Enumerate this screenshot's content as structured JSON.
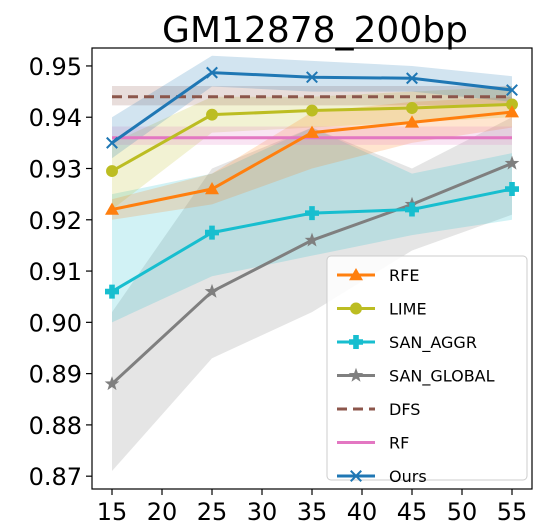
{
  "chart_data": {
    "type": "line",
    "title": "GM12878_200bp",
    "xlabel": "",
    "ylabel": "",
    "x": [
      15,
      25,
      35,
      45,
      55
    ],
    "xticks": [
      15,
      20,
      25,
      30,
      35,
      40,
      45,
      50,
      55
    ],
    "xtick_labels": [
      "15",
      "20",
      "25",
      "30",
      "35",
      "40",
      "45",
      "50",
      "55"
    ],
    "yticks": [
      0.87,
      0.88,
      0.89,
      0.9,
      0.91,
      0.92,
      0.93,
      0.94,
      0.95
    ],
    "ytick_labels": [
      "0.87",
      "0.88",
      "0.89",
      "0.90",
      "0.91",
      "0.92",
      "0.93",
      "0.94",
      "0.95"
    ],
    "xlim": [
      13,
      57
    ],
    "ylim": [
      0.8675,
      0.9535
    ],
    "grid": false,
    "legend_position": "lower-right",
    "series": [
      {
        "name": "RFE",
        "color": "#ff7f0e",
        "marker": "triangle",
        "style": "solid",
        "values": [
          0.922,
          0.926,
          0.937,
          0.939,
          0.941
        ],
        "lower": [
          0.92,
          0.923,
          0.93,
          0.935,
          0.938
        ],
        "upper": [
          0.924,
          0.929,
          0.941,
          0.943,
          0.944
        ]
      },
      {
        "name": "LIME",
        "color": "#bcbd22",
        "marker": "circle",
        "style": "solid",
        "values": [
          0.9295,
          0.9405,
          0.9413,
          0.9418,
          0.9425
        ],
        "lower": [
          0.922,
          0.937,
          0.938,
          0.939,
          0.94
        ],
        "upper": [
          0.935,
          0.944,
          0.944,
          0.945,
          0.946
        ]
      },
      {
        "name": "SAN_AGGR",
        "color": "#17becf",
        "marker": "plus",
        "style": "solid",
        "values": [
          0.906,
          0.9175,
          0.9213,
          0.922,
          0.926
        ],
        "lower": [
          0.9,
          0.909,
          0.913,
          0.917,
          0.92
        ],
        "upper": [
          0.925,
          0.929,
          0.938,
          0.929,
          0.933
        ]
      },
      {
        "name": "SAN_GLOBAL",
        "color": "#7f7f7f",
        "marker": "star",
        "style": "solid",
        "values": [
          0.888,
          0.906,
          0.916,
          0.923,
          0.931
        ],
        "lower": [
          0.871,
          0.893,
          0.902,
          0.914,
          0.921
        ],
        "upper": [
          0.902,
          0.93,
          0.938,
          0.93,
          0.94
        ]
      },
      {
        "name": "DFS",
        "color": "#8c564b",
        "marker": "none",
        "style": "dashed",
        "values": [
          0.944,
          0.944,
          0.944,
          0.944,
          0.944
        ],
        "lower": [
          0.9423,
          0.9423,
          0.9423,
          0.9423,
          0.9423
        ],
        "upper": [
          0.9461,
          0.9461,
          0.9461,
          0.9461,
          0.9461
        ]
      },
      {
        "name": "RF",
        "color": "#e377c2",
        "marker": "none",
        "style": "solid",
        "values": [
          0.936,
          0.936,
          0.936,
          0.936,
          0.936
        ],
        "lower": [
          0.9346,
          0.9346,
          0.9346,
          0.9346,
          0.9346
        ],
        "upper": [
          0.9382,
          0.9382,
          0.9382,
          0.9382,
          0.9382
        ]
      },
      {
        "name": "Ours",
        "color": "#1f77b4",
        "marker": "x",
        "style": "solid",
        "values": [
          0.935,
          0.9487,
          0.9478,
          0.9476,
          0.9453
        ],
        "lower": [
          0.932,
          0.946,
          0.945,
          0.945,
          0.943
        ],
        "upper": [
          0.94,
          0.952,
          0.951,
          0.95,
          0.948
        ]
      }
    ]
  }
}
